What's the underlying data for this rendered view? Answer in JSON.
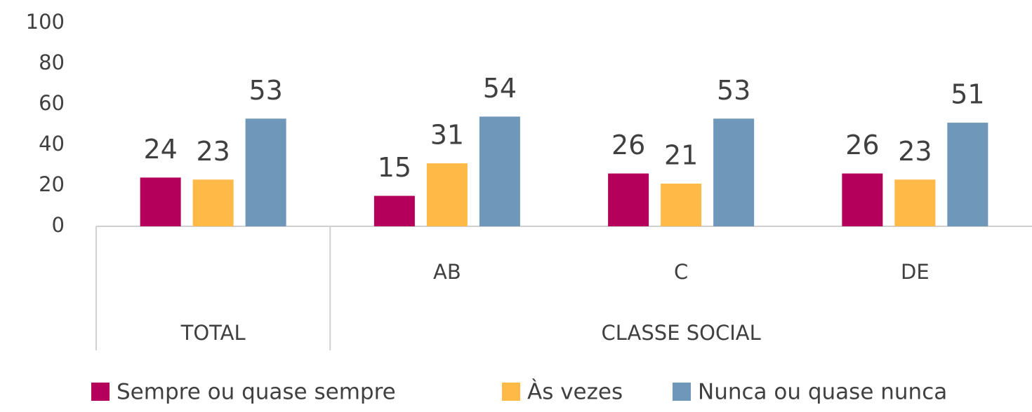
{
  "chart_data": {
    "type": "bar",
    "groups": [
      {
        "name": "TOTAL",
        "categories": [
          null
        ]
      },
      {
        "name": "CLASSE SOCIAL",
        "categories": [
          "AB",
          "C",
          "DE"
        ]
      }
    ],
    "series": [
      {
        "name": "Sempre ou quase sempre",
        "color": "#b5005b",
        "values": [
          24,
          15,
          26,
          26
        ]
      },
      {
        "name": "Às vezes",
        "color": "#ffb946",
        "values": [
          23,
          31,
          21,
          23
        ]
      },
      {
        "name": "Nunca ou quase nunca",
        "color": "#6f97b9",
        "values": [
          53,
          54,
          53,
          51
        ]
      }
    ],
    "ylim": [
      0,
      100
    ],
    "yticks": [
      0,
      20,
      40,
      60,
      80,
      100
    ],
    "grid": false,
    "legend": "bottom"
  }
}
